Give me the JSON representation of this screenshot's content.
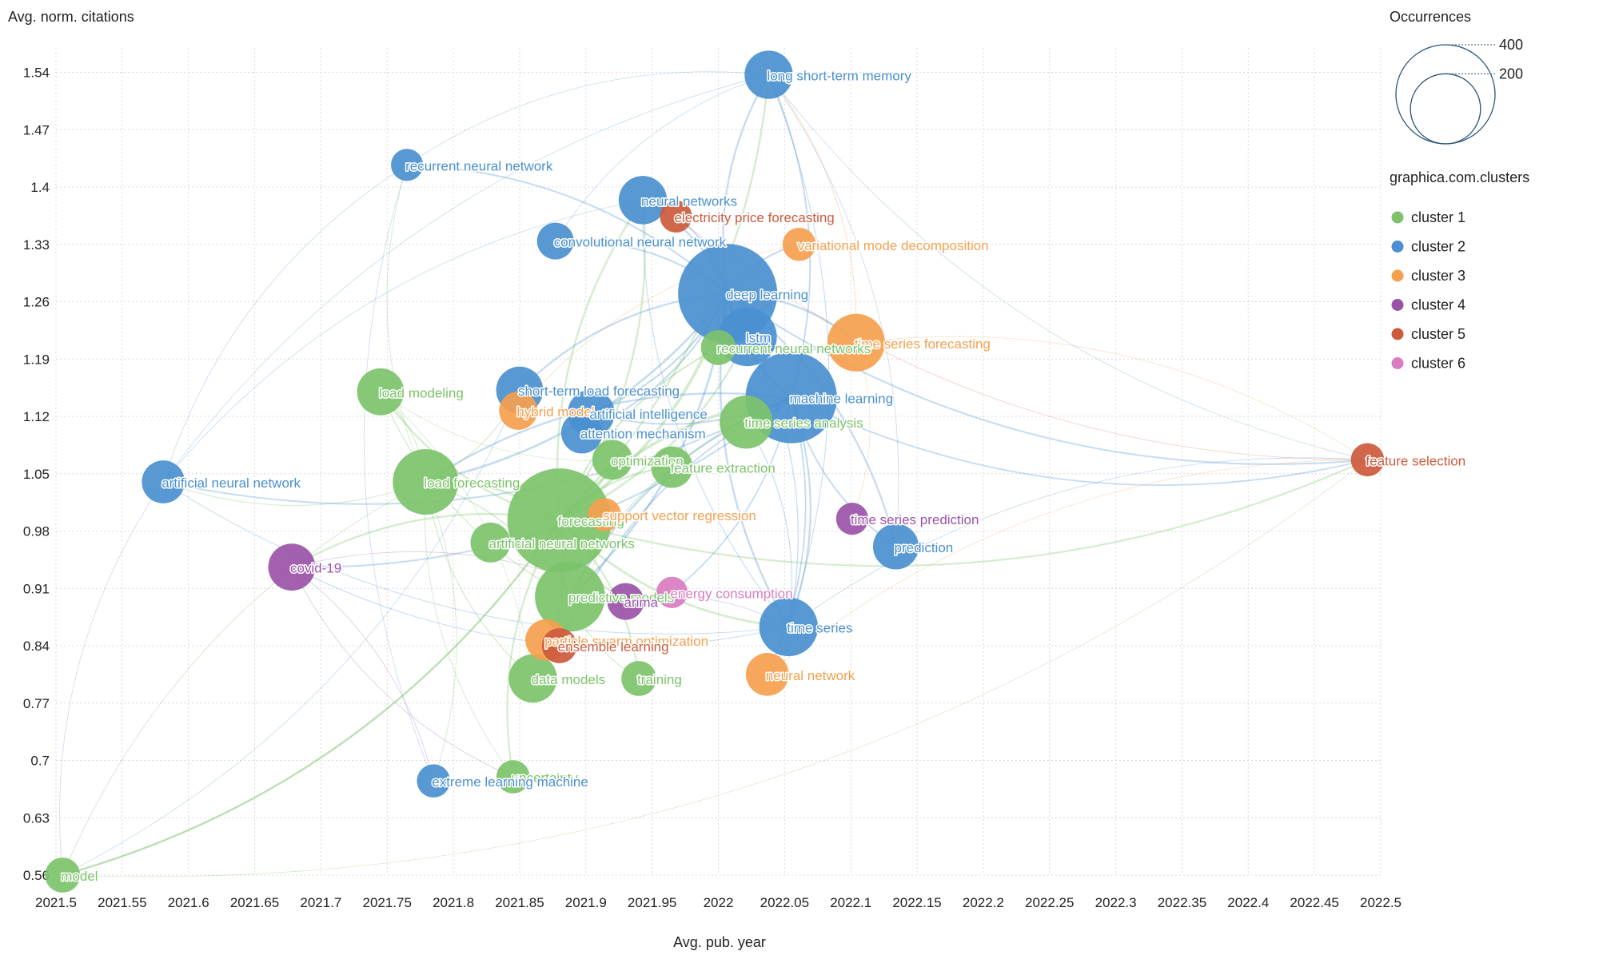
{
  "chart_data": {
    "type": "scatter",
    "xlabel": "Avg. pub. year",
    "ylabel": "Avg. norm. citations",
    "xlim": [
      2021.5,
      2022.5
    ],
    "ylim": [
      0.56,
      1.56
    ],
    "x_ticks": [
      "2021.5",
      "2021.55",
      "2021.6",
      "2021.65",
      "2021.7",
      "2021.75",
      "2021.8",
      "2021.85",
      "2021.9",
      "2021.95",
      "2022",
      "2022.05",
      "2022.1",
      "2022.15",
      "2022.2",
      "2022.25",
      "2022.3",
      "2022.35",
      "2022.4",
      "2022.45",
      "2022.5"
    ],
    "y_ticks": [
      "0.56",
      "0.63",
      "0.7",
      "0.77",
      "0.84",
      "0.91",
      "0.98",
      "1.05",
      "1.12",
      "1.19",
      "1.26",
      "1.33",
      "1.4",
      "1.47",
      "1.54"
    ],
    "grid": true,
    "size_legend": {
      "title": "Occurrences",
      "items": [
        {
          "label": "400",
          "value": 400
        },
        {
          "label": "200",
          "value": 200
        }
      ]
    },
    "cluster_legend": {
      "title": "graphica.com.clusters",
      "items": [
        {
          "label": "cluster 1",
          "color": "#7cc36a"
        },
        {
          "label": "cluster 2",
          "color": "#4a90d0"
        },
        {
          "label": "cluster 3",
          "color": "#f5a04e"
        },
        {
          "label": "cluster 4",
          "color": "#9a52a8"
        },
        {
          "label": "cluster 5",
          "color": "#cc5a3c"
        },
        {
          "label": "cluster 6",
          "color": "#d97cc0"
        }
      ]
    },
    "nodes": [
      {
        "label": "long short-term memory",
        "x": 2022.038,
        "y": 1.537,
        "occ": 95,
        "cluster": 2
      },
      {
        "label": "recurrent neural network",
        "x": 2021.765,
        "y": 1.427,
        "occ": 42,
        "cluster": 2
      },
      {
        "label": "neural networks",
        "x": 2021.943,
        "y": 1.384,
        "occ": 95,
        "cluster": 2
      },
      {
        "label": "electricity price forecasting",
        "x": 2021.968,
        "y": 1.364,
        "occ": 42,
        "cluster": 5
      },
      {
        "label": "convolutional neural network",
        "x": 2021.877,
        "y": 1.334,
        "occ": 55,
        "cluster": 2
      },
      {
        "label": "variational mode decomposition",
        "x": 2022.061,
        "y": 1.33,
        "occ": 45,
        "cluster": 3
      },
      {
        "label": "deep learning",
        "x": 2022.007,
        "y": 1.27,
        "occ": 400,
        "cluster": 2
      },
      {
        "label": "lstm",
        "x": 2022.022,
        "y": 1.217,
        "occ": 140,
        "cluster": 2
      },
      {
        "label": "time series forecasting",
        "x": 2022.104,
        "y": 1.21,
        "occ": 135,
        "cluster": 3
      },
      {
        "label": "recurrent neural networks",
        "x": 2022.0,
        "y": 1.204,
        "occ": 50,
        "cluster": 1
      },
      {
        "label": "load modeling",
        "x": 2021.745,
        "y": 1.15,
        "occ": 90,
        "cluster": 1
      },
      {
        "label": "short-term load forecasting",
        "x": 2021.85,
        "y": 1.152,
        "occ": 90,
        "cluster": 2
      },
      {
        "label": "hybrid model",
        "x": 2021.849,
        "y": 1.127,
        "occ": 60,
        "cluster": 3
      },
      {
        "label": "machine learning",
        "x": 2022.055,
        "y": 1.143,
        "occ": 340,
        "cluster": 2
      },
      {
        "label": "artificial intelligence",
        "x": 2021.904,
        "y": 1.124,
        "occ": 90,
        "cluster": 2
      },
      {
        "label": "time series analysis",
        "x": 2022.021,
        "y": 1.113,
        "occ": 115,
        "cluster": 1
      },
      {
        "label": "attention mechanism",
        "x": 2021.897,
        "y": 1.1,
        "occ": 70,
        "cluster": 2
      },
      {
        "label": "optimization",
        "x": 2021.92,
        "y": 1.067,
        "occ": 65,
        "cluster": 1
      },
      {
        "label": "feature extraction",
        "x": 2021.965,
        "y": 1.058,
        "occ": 70,
        "cluster": 1
      },
      {
        "label": "artificial neural network",
        "x": 2021.581,
        "y": 1.04,
        "occ": 75,
        "cluster": 2
      },
      {
        "label": "load forecasting",
        "x": 2021.779,
        "y": 1.04,
        "occ": 175,
        "cluster": 1
      },
      {
        "label": "feature selection",
        "x": 2022.49,
        "y": 1.067,
        "occ": 45,
        "cluster": 5
      },
      {
        "label": "forecasting",
        "x": 2021.88,
        "y": 0.993,
        "occ": 440,
        "cluster": 1
      },
      {
        "label": "support vector regression",
        "x": 2021.914,
        "y": 1.0,
        "occ": 45,
        "cluster": 3
      },
      {
        "label": "time series prediction",
        "x": 2022.101,
        "y": 0.995,
        "occ": 42,
        "cluster": 4
      },
      {
        "label": "artificial neural networks",
        "x": 2021.828,
        "y": 0.966,
        "occ": 65,
        "cluster": 1
      },
      {
        "label": "prediction",
        "x": 2022.134,
        "y": 0.961,
        "occ": 85,
        "cluster": 2
      },
      {
        "label": "covid-19",
        "x": 2021.678,
        "y": 0.936,
        "occ": 90,
        "cluster": 4
      },
      {
        "label": "predictive models",
        "x": 2021.888,
        "y": 0.9,
        "occ": 200,
        "cluster": 1
      },
      {
        "label": "arima",
        "x": 2021.93,
        "y": 0.894,
        "occ": 55,
        "cluster": 4
      },
      {
        "label": "energy consumption",
        "x": 2021.965,
        "y": 0.905,
        "occ": 40,
        "cluster": 6
      },
      {
        "label": "time series",
        "x": 2022.053,
        "y": 0.863,
        "occ": 140,
        "cluster": 2
      },
      {
        "label": "particle swarm optimization",
        "x": 2021.87,
        "y": 0.847,
        "occ": 70,
        "cluster": 3
      },
      {
        "label": "ensemble learning",
        "x": 2021.88,
        "y": 0.84,
        "occ": 50,
        "cluster": 5
      },
      {
        "label": "data models",
        "x": 2021.86,
        "y": 0.8,
        "occ": 95,
        "cluster": 1
      },
      {
        "label": "training",
        "x": 2021.94,
        "y": 0.8,
        "occ": 50,
        "cluster": 1
      },
      {
        "label": "neural network",
        "x": 2022.037,
        "y": 0.805,
        "occ": 75,
        "cluster": 3
      },
      {
        "label": "uncertainty",
        "x": 2021.845,
        "y": 0.68,
        "occ": 45,
        "cluster": 1
      },
      {
        "label": "extreme learning machine",
        "x": 2021.785,
        "y": 0.675,
        "occ": 45,
        "cluster": 2
      },
      {
        "label": "model",
        "x": 2021.505,
        "y": 0.56,
        "occ": 50,
        "cluster": 1
      }
    ],
    "edges": [
      [
        "deep learning",
        "machine learning"
      ],
      [
        "deep learning",
        "forecasting"
      ],
      [
        "deep learning",
        "lstm"
      ],
      [
        "deep learning",
        "long short-term memory"
      ],
      [
        "deep learning",
        "neural networks"
      ],
      [
        "deep learning",
        "time series forecasting"
      ],
      [
        "deep learning",
        "time series"
      ],
      [
        "deep learning",
        "load forecasting"
      ],
      [
        "deep learning",
        "convolutional neural network"
      ],
      [
        "deep learning",
        "artificial intelligence"
      ],
      [
        "deep learning",
        "short-term load forecasting"
      ],
      [
        "deep learning",
        "attention mechanism"
      ],
      [
        "deep learning",
        "recurrent neural network"
      ],
      [
        "deep learning",
        "prediction"
      ],
      [
        "deep learning",
        "feature selection"
      ],
      [
        "deep learning",
        "predictive models"
      ],
      [
        "deep learning",
        "electricity price forecasting"
      ],
      [
        "deep learning",
        "variational mode decomposition"
      ],
      [
        "machine learning",
        "forecasting"
      ],
      [
        "machine learning",
        "time series"
      ],
      [
        "machine learning",
        "prediction"
      ],
      [
        "machine learning",
        "artificial intelligence"
      ],
      [
        "machine learning",
        "load forecasting"
      ],
      [
        "machine learning",
        "artificial neural network"
      ],
      [
        "machine learning",
        "feature selection"
      ],
      [
        "machine learning",
        "time series analysis"
      ],
      [
        "machine learning",
        "long short-term memory"
      ],
      [
        "machine learning",
        "neural network"
      ],
      [
        "machine learning",
        "predictive models"
      ],
      [
        "machine learning",
        "covid-19"
      ],
      [
        "forecasting",
        "load forecasting"
      ],
      [
        "forecasting",
        "load modeling"
      ],
      [
        "forecasting",
        "predictive models"
      ],
      [
        "forecasting",
        "data models"
      ],
      [
        "forecasting",
        "time series"
      ],
      [
        "forecasting",
        "artificial neural networks"
      ],
      [
        "forecasting",
        "optimization"
      ],
      [
        "forecasting",
        "feature extraction"
      ],
      [
        "forecasting",
        "uncertainty"
      ],
      [
        "forecasting",
        "training"
      ],
      [
        "forecasting",
        "long short-term memory"
      ],
      [
        "forecasting",
        "neural networks"
      ],
      [
        "forecasting",
        "covid-19"
      ],
      [
        "forecasting",
        "model"
      ],
      [
        "forecasting",
        "arima"
      ],
      [
        "forecasting",
        "recurrent neural networks"
      ],
      [
        "load forecasting",
        "load modeling"
      ],
      [
        "load forecasting",
        "predictive models"
      ],
      [
        "load forecasting",
        "short-term load forecasting"
      ],
      [
        "load forecasting",
        "artificial neural network"
      ],
      [
        "load forecasting",
        "data models"
      ],
      [
        "load forecasting",
        "recurrent neural network"
      ],
      [
        "load modeling",
        "predictive models"
      ],
      [
        "load modeling",
        "data models"
      ],
      [
        "load modeling",
        "optimization"
      ],
      [
        "long short-term memory",
        "time series"
      ],
      [
        "long short-term memory",
        "feature selection"
      ],
      [
        "long short-term memory",
        "prediction"
      ],
      [
        "long short-term memory",
        "artificial neural network"
      ],
      [
        "long short-term memory",
        "time series forecasting"
      ],
      [
        "long short-term memory",
        "convolutional neural network"
      ],
      [
        "lstm",
        "time series"
      ],
      [
        "lstm",
        "time series forecasting"
      ],
      [
        "lstm",
        "forecasting"
      ],
      [
        "artificial neural network",
        "model"
      ],
      [
        "artificial neural network",
        "recurrent neural network"
      ],
      [
        "artificial neural network",
        "time series"
      ],
      [
        "artificial neural network",
        "neural networks"
      ],
      [
        "recurrent neural network",
        "extreme learning machine"
      ],
      [
        "recurrent neural network",
        "long short-term memory"
      ],
      [
        "feature selection",
        "time series"
      ],
      [
        "feature selection",
        "model"
      ],
      [
        "feature selection",
        "neural network"
      ],
      [
        "feature selection",
        "forecasting"
      ],
      [
        "feature selection",
        "time series forecasting"
      ],
      [
        "feature selection",
        "electricity price forecasting"
      ],
      [
        "covid-19",
        "time series"
      ],
      [
        "covid-19",
        "arima"
      ],
      [
        "covid-19",
        "uncertainty"
      ],
      [
        "covid-19",
        "extreme learning machine"
      ],
      [
        "model",
        "forecasting"
      ],
      [
        "model",
        "load forecasting"
      ],
      [
        "model",
        "short-term load forecasting"
      ],
      [
        "predictive models",
        "data models"
      ],
      [
        "predictive models",
        "training"
      ],
      [
        "predictive models",
        "time series analysis"
      ],
      [
        "time series",
        "arima"
      ],
      [
        "time series",
        "neural network"
      ],
      [
        "time series",
        "time series analysis"
      ],
      [
        "time series forecasting",
        "time series prediction"
      ],
      [
        "neural networks",
        "time series"
      ],
      [
        "neural networks",
        "forecasting"
      ],
      [
        "particle swarm optimization",
        "support vector regression"
      ],
      [
        "ensemble learning",
        "machine learning"
      ],
      [
        "energy consumption",
        "machine learning"
      ],
      [
        "hybrid model",
        "variational mode decomposition"
      ],
      [
        "extreme learning machine",
        "load forecasting"
      ],
      [
        "uncertainty",
        "load forecasting"
      ]
    ]
  }
}
